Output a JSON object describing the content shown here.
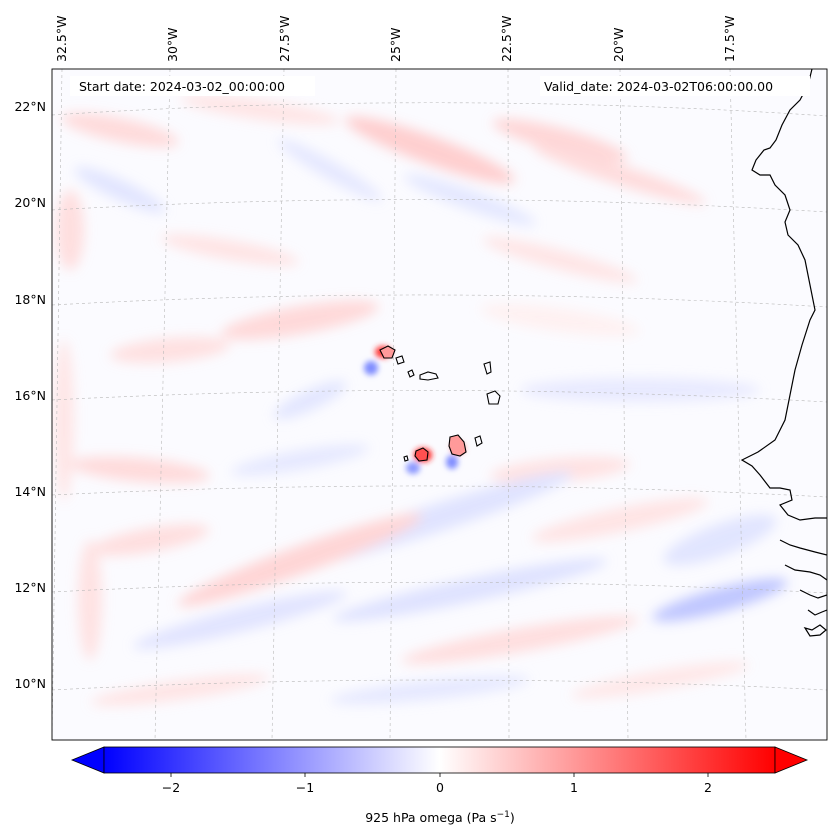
{
  "map": {
    "start_label": "Start date: 2024-03-02_00:00:00",
    "valid_label": "Valid_date: 2024-03-02T06:00:00.00",
    "lon_ticks": [
      "32.5°W",
      "30°W",
      "27.5°W",
      "25°W",
      "22.5°W",
      "20°W",
      "17.5°W"
    ],
    "lat_ticks": [
      "22°N",
      "20°N",
      "18°N",
      "16°N",
      "14°N",
      "12°N",
      "10°N"
    ],
    "extent": {
      "lon_min": -33.0,
      "lon_max": -15.5,
      "lat_min": 8.9,
      "lat_max": 22.7
    },
    "features": [
      "Cape Verde islands",
      "West African coastline (Mauritania / Senegal / Guinea-Bissau)"
    ],
    "projection_note": "curved graticule (Lambert-like projection)"
  },
  "colorbar": {
    "label_main": "925 hPa omega (Pa s",
    "label_sup": "−1",
    "label_close": ")",
    "tick_labels": [
      "−2",
      "−1",
      "0",
      "1",
      "2"
    ],
    "tick_values": [
      -2,
      -1,
      0,
      1,
      2
    ],
    "range": [
      -2.5,
      2.5
    ],
    "colormap": "bwr",
    "extend": "both",
    "color_low": "#0000ff",
    "color_mid": "#ffffff",
    "color_high": "#ff0000"
  }
}
